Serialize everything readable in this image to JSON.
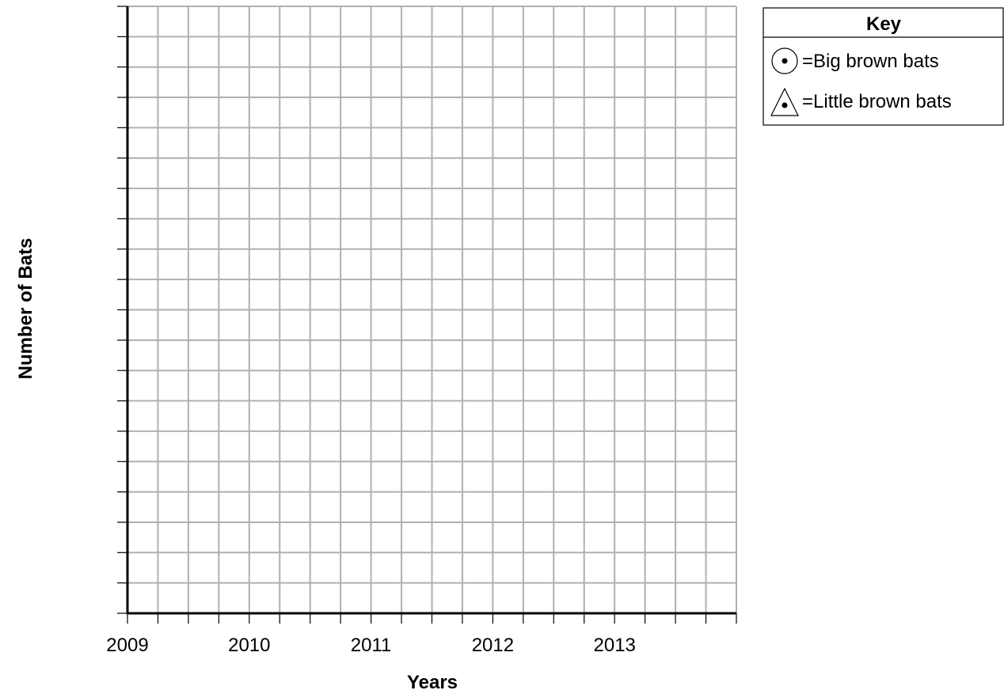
{
  "chart_data": {
    "type": "scatter",
    "title": "",
    "xlabel": "Years",
    "ylabel": "Number of Bats",
    "x_tick_labels": [
      "2009",
      "2010",
      "2011",
      "2012",
      "2013"
    ],
    "x_tick_values": [
      2009,
      2010,
      2011,
      2012,
      2013
    ],
    "xlim": [
      2009,
      2014
    ],
    "x_minor_per_year": 4,
    "y_gridlines": 20,
    "grid": true,
    "legend_position": "top-right",
    "legend": {
      "title": "Key",
      "entries": [
        {
          "symbol": "circle-dot",
          "label": "=Big brown bats"
        },
        {
          "symbol": "triangle-dot",
          "label": "=Little brown bats"
        }
      ]
    },
    "series": [
      {
        "name": "Big brown bats",
        "marker": "circle-dot",
        "points": []
      },
      {
        "name": "Little brown bats",
        "marker": "triangle-dot",
        "points": []
      }
    ],
    "colors": {
      "grid": "#b0b0b0",
      "axis": "#000000"
    }
  }
}
